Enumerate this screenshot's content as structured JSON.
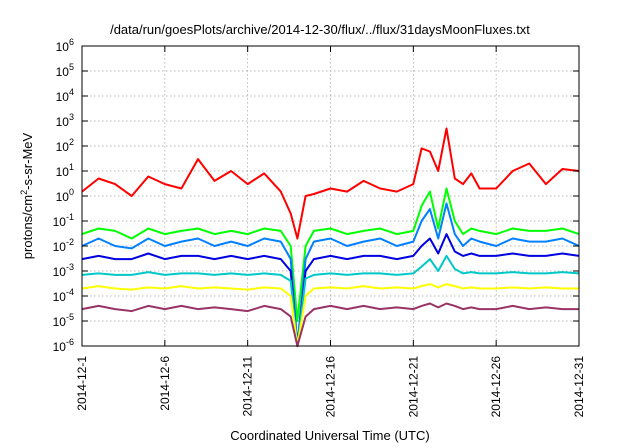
{
  "chart_data": {
    "type": "line",
    "title": "/data/run/goesPlots/archive/2014-12-30/flux/../flux/31daysMoonFluxes.txt",
    "xlabel": "Coordinated Universal Time (UTC)",
    "ylabel_prefix": "protons/cm",
    "ylabel_sup": "2",
    "ylabel_suffix": "-s-sr-MeV",
    "yscale": "log",
    "xlim_days": [
      0,
      30
    ],
    "ylim": [
      1e-06,
      1000000.0
    ],
    "grid": true,
    "x_ticks": [
      {
        "label": "2014-12-1",
        "day": 0
      },
      {
        "label": "2014-12-6",
        "day": 5
      },
      {
        "label": "2014-12-11",
        "day": 10
      },
      {
        "label": "2014-12-16",
        "day": 15
      },
      {
        "label": "2014-12-21",
        "day": 20
      },
      {
        "label": "2014-12-26",
        "day": 25
      },
      {
        "label": "2014-12-31",
        "day": 30
      }
    ],
    "y_ticks": [
      {
        "base": "10",
        "exp": "-6",
        "value": 1e-06
      },
      {
        "base": "10",
        "exp": "-5",
        "value": 1e-05
      },
      {
        "base": "10",
        "exp": "-4",
        "value": 0.0001
      },
      {
        "base": "10",
        "exp": "-3",
        "value": 0.001
      },
      {
        "base": "10",
        "exp": "-2",
        "value": 0.01
      },
      {
        "base": "10",
        "exp": "-1",
        "value": 0.1
      },
      {
        "base": "10",
        "exp": "0",
        "value": 1
      },
      {
        "base": "10",
        "exp": "1",
        "value": 10
      },
      {
        "base": "10",
        "exp": "2",
        "value": 100
      },
      {
        "base": "10",
        "exp": "3",
        "value": 1000
      },
      {
        "base": "10",
        "exp": "4",
        "value": 10000
      },
      {
        "base": "10",
        "exp": "5",
        "value": 100000
      },
      {
        "base": "10",
        "exp": "6",
        "value": 1000000
      }
    ],
    "series": [
      {
        "color": "#ff0000",
        "x": [
          0,
          1,
          2,
          3,
          4,
          5,
          6,
          7,
          8,
          9,
          10,
          11,
          12,
          12.6,
          13,
          13.5,
          14,
          15,
          16,
          17,
          18,
          19,
          20,
          20.5,
          21,
          21.5,
          22,
          22.5,
          23,
          23.5,
          24,
          25,
          26,
          27,
          28,
          29,
          30
        ],
        "values": [
          1.5,
          5,
          3,
          1,
          6,
          3,
          2,
          30,
          4,
          10,
          3,
          8,
          1.5,
          0.2,
          0.02,
          1,
          1.2,
          2,
          1.5,
          4,
          2,
          1.5,
          3,
          80,
          60,
          10,
          500,
          5,
          3,
          8,
          2,
          2,
          10,
          20,
          3,
          12,
          10
        ]
      },
      {
        "color": "#00ff00",
        "x": [
          0,
          1,
          2,
          3,
          4,
          5,
          6,
          7,
          8,
          9,
          10,
          11,
          12,
          12.6,
          13,
          13.5,
          14,
          15,
          16,
          17,
          18,
          19,
          20,
          20.5,
          21,
          21.5,
          22,
          22.5,
          23,
          23.5,
          24,
          25,
          26,
          27,
          28,
          29,
          30
        ],
        "values": [
          0.03,
          0.05,
          0.04,
          0.02,
          0.05,
          0.03,
          0.04,
          0.05,
          0.03,
          0.04,
          0.03,
          0.05,
          0.04,
          0.01,
          1e-05,
          0.01,
          0.04,
          0.05,
          0.03,
          0.04,
          0.05,
          0.03,
          0.04,
          0.4,
          1.5,
          0.05,
          2,
          0.1,
          0.03,
          0.05,
          0.04,
          0.03,
          0.05,
          0.04,
          0.04,
          0.05,
          0.03
        ]
      },
      {
        "color": "#0080ff",
        "x": [
          0,
          1,
          2,
          3,
          4,
          5,
          6,
          7,
          8,
          9,
          10,
          11,
          12,
          12.6,
          13,
          13.5,
          14,
          15,
          16,
          17,
          18,
          19,
          20,
          20.5,
          21,
          21.5,
          22,
          22.5,
          23,
          23.5,
          24,
          25,
          26,
          27,
          28,
          29,
          30
        ],
        "values": [
          0.01,
          0.02,
          0.01,
          0.008,
          0.02,
          0.01,
          0.015,
          0.02,
          0.01,
          0.015,
          0.01,
          0.02,
          0.015,
          0.003,
          1e-06,
          0.003,
          0.015,
          0.02,
          0.01,
          0.015,
          0.02,
          0.01,
          0.015,
          0.1,
          0.3,
          0.02,
          0.5,
          0.03,
          0.01,
          0.02,
          0.015,
          0.01,
          0.02,
          0.015,
          0.015,
          0.02,
          0.01
        ]
      },
      {
        "color": "#0000e0",
        "x": [
          0,
          1,
          2,
          3,
          4,
          5,
          6,
          7,
          8,
          9,
          10,
          11,
          12,
          12.6,
          13,
          13.5,
          14,
          15,
          16,
          17,
          18,
          19,
          20,
          20.5,
          21,
          21.5,
          22,
          22.5,
          23,
          23.5,
          24,
          25,
          26,
          27,
          28,
          29,
          30
        ],
        "values": [
          0.003,
          0.004,
          0.003,
          0.003,
          0.005,
          0.003,
          0.004,
          0.004,
          0.003,
          0.004,
          0.003,
          0.004,
          0.003,
          0.001,
          1e-06,
          0.001,
          0.003,
          0.004,
          0.003,
          0.004,
          0.004,
          0.003,
          0.004,
          0.01,
          0.02,
          0.005,
          0.03,
          0.006,
          0.004,
          0.005,
          0.004,
          0.004,
          0.005,
          0.004,
          0.004,
          0.005,
          0.004
        ]
      },
      {
        "color": "#00c8c8",
        "x": [
          0,
          1,
          2,
          3,
          4,
          5,
          6,
          7,
          8,
          9,
          10,
          11,
          12,
          12.6,
          13,
          13.5,
          14,
          15,
          16,
          17,
          18,
          19,
          20,
          20.5,
          21,
          21.5,
          22,
          22.5,
          23,
          23.5,
          24,
          25,
          26,
          27,
          28,
          29,
          30
        ],
        "values": [
          0.0007,
          0.0008,
          0.0007,
          0.0007,
          0.0009,
          0.0007,
          0.0008,
          0.0008,
          0.0007,
          0.0008,
          0.0007,
          0.0008,
          0.0007,
          0.0004,
          1e-06,
          0.0005,
          0.0007,
          0.0008,
          0.0007,
          0.0008,
          0.0008,
          0.0007,
          0.0008,
          0.0015,
          0.003,
          0.001,
          0.004,
          0.0012,
          0.0008,
          0.0009,
          0.0008,
          0.0008,
          0.0009,
          0.0008,
          0.0008,
          0.0009,
          0.0008
        ]
      },
      {
        "color": "#ffff00",
        "x": [
          0,
          1,
          2,
          3,
          4,
          5,
          6,
          7,
          8,
          9,
          10,
          11,
          12,
          12.6,
          13,
          13.5,
          14,
          15,
          16,
          17,
          18,
          19,
          20,
          20.5,
          21,
          21.5,
          22,
          22.5,
          23,
          23.5,
          24,
          25,
          26,
          27,
          28,
          29,
          30
        ],
        "values": [
          0.0002,
          0.00025,
          0.0002,
          0.00018,
          0.00022,
          0.0002,
          0.00025,
          0.0002,
          0.00022,
          0.0002,
          0.00018,
          0.00022,
          0.0002,
          0.0001,
          1e-06,
          0.0001,
          0.0002,
          0.00022,
          0.0002,
          0.00025,
          0.0002,
          0.00022,
          0.0002,
          0.00025,
          0.0003,
          0.00022,
          0.0003,
          0.00025,
          0.0002,
          0.00022,
          0.0002,
          0.0002,
          0.00022,
          0.0002,
          0.00022,
          0.0002,
          0.0002
        ]
      },
      {
        "color": "#993366",
        "x": [
          0,
          1,
          2,
          3,
          4,
          5,
          6,
          7,
          8,
          9,
          10,
          11,
          12,
          12.6,
          13,
          13.5,
          14,
          15,
          16,
          17,
          18,
          19,
          20,
          20.5,
          21,
          21.5,
          22,
          22.5,
          23,
          23.5,
          24,
          25,
          26,
          27,
          28,
          29,
          30
        ],
        "values": [
          3e-05,
          4e-05,
          3e-05,
          2.5e-05,
          4e-05,
          3e-05,
          4e-05,
          3e-05,
          3.5e-05,
          3e-05,
          2.5e-05,
          4e-05,
          3e-05,
          1.5e-05,
          1e-06,
          1.5e-05,
          3e-05,
          4e-05,
          3e-05,
          4e-05,
          3e-05,
          3.5e-05,
          3e-05,
          4e-05,
          5e-05,
          3.5e-05,
          5e-05,
          4e-05,
          3e-05,
          3.5e-05,
          3e-05,
          3e-05,
          4e-05,
          3e-05,
          3.5e-05,
          3e-05,
          3e-05
        ]
      }
    ]
  }
}
